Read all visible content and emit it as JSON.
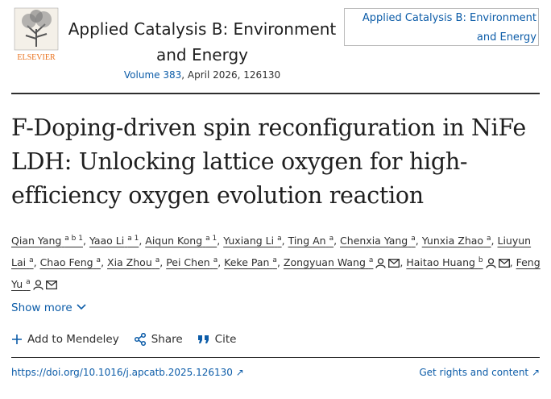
{
  "header": {
    "publisher": "ELSEVIER",
    "journal": "Applied Catalysis B: Environment and Energy",
    "volume": "Volume 383",
    "issue_info": ", April 2026, 126130",
    "cover_alt": "Applied Catalysis B: Environment and Energy"
  },
  "article": {
    "title": "F-Doping-driven spin reconfiguration in NiFe LDH: Unlocking lattice oxygen for high-efficiency oxygen evolution reaction",
    "authors": [
      {
        "name": "Qian Yang",
        "sup": "a b 1"
      },
      {
        "name": "Yaao Li",
        "sup": "a 1"
      },
      {
        "name": "Aiqun Kong",
        "sup": "a 1"
      },
      {
        "name": "Yuxiang Li",
        "sup": "a"
      },
      {
        "name": "Ting An",
        "sup": "a"
      },
      {
        "name": "Chenxia Yang",
        "sup": "a"
      },
      {
        "name": "Yunxia Zhao",
        "sup": "a"
      },
      {
        "name": "Liuyun Lai",
        "sup": "a"
      },
      {
        "name": "Chao Feng",
        "sup": "a"
      },
      {
        "name": "Xia Zhou",
        "sup": "a"
      },
      {
        "name": "Pei Chen",
        "sup": "a"
      },
      {
        "name": "Keke Pan",
        "sup": "a"
      },
      {
        "name": "Zongyuan Wang",
        "sup": "a"
      },
      {
        "name": "Haitao Huang",
        "sup": "b"
      },
      {
        "name": "Feng Yu",
        "sup": "a"
      }
    ],
    "show_more": "Show more",
    "actions": [
      "Add to Mendeley",
      "Share",
      "Cite"
    ],
    "doi": "https://doi.org/10.1016/j.apcatb.2025.126130",
    "rights": "Get rights and content"
  }
}
